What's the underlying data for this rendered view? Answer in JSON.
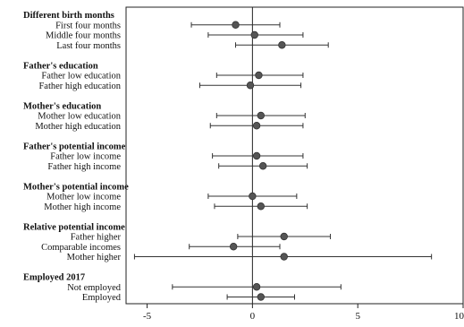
{
  "chart_data": {
    "type": "scatter",
    "title": "",
    "xlabel": "",
    "ylabel": "",
    "xlim": [
      -6,
      10
    ],
    "xticks": [
      -5,
      0,
      5,
      10
    ],
    "xtick_labels": [
      "-5",
      "0",
      "5",
      "10"
    ],
    "reference_line_x": 0,
    "grid": false,
    "legend": "none",
    "marker_color": "#555555",
    "line_color": "#333333",
    "groups": [
      {
        "label": "Different birth months",
        "items": [
          {
            "label": "First four months",
            "estimate": -0.8,
            "ci_low": -2.9,
            "ci_high": 1.3
          },
          {
            "label": "Middle four months",
            "estimate": 0.1,
            "ci_low": -2.1,
            "ci_high": 2.4
          },
          {
            "label": "Last four months",
            "estimate": 1.4,
            "ci_low": -0.8,
            "ci_high": 3.6
          }
        ]
      },
      {
        "label": "Father's education",
        "items": [
          {
            "label": "Father low education",
            "estimate": 0.3,
            "ci_low": -1.7,
            "ci_high": 2.4
          },
          {
            "label": "Father high education",
            "estimate": -0.1,
            "ci_low": -2.5,
            "ci_high": 2.3
          }
        ]
      },
      {
        "label": "Mother's education",
        "items": [
          {
            "label": "Mother low education",
            "estimate": 0.4,
            "ci_low": -1.7,
            "ci_high": 2.5
          },
          {
            "label": "Mother high education",
            "estimate": 0.2,
            "ci_low": -2.0,
            "ci_high": 2.4
          }
        ]
      },
      {
        "label": "Father's potential income",
        "items": [
          {
            "label": "Father low income",
            "estimate": 0.2,
            "ci_low": -1.9,
            "ci_high": 2.4
          },
          {
            "label": "Father high income",
            "estimate": 0.5,
            "ci_low": -1.6,
            "ci_high": 2.6
          }
        ]
      },
      {
        "label": "Mother's potential income",
        "items": [
          {
            "label": "Mother low income",
            "estimate": 0.0,
            "ci_low": -2.1,
            "ci_high": 2.1
          },
          {
            "label": "Mother high income",
            "estimate": 0.4,
            "ci_low": -1.8,
            "ci_high": 2.6
          }
        ]
      },
      {
        "label": "Relative potential income",
        "items": [
          {
            "label": "Father higher",
            "estimate": 1.5,
            "ci_low": -0.7,
            "ci_high": 3.7
          },
          {
            "label": "Comparable incomes",
            "estimate": -0.9,
            "ci_low": -3.0,
            "ci_high": 1.3
          },
          {
            "label": "Mother higher",
            "estimate": 1.5,
            "ci_low": -5.6,
            "ci_high": 8.5
          }
        ]
      },
      {
        "label": "Employed 2017",
        "items": [
          {
            "label": "Not employed",
            "estimate": 0.2,
            "ci_low": -3.8,
            "ci_high": 4.2
          },
          {
            "label": "Employed",
            "estimate": 0.4,
            "ci_low": -1.2,
            "ci_high": 2.0
          }
        ]
      }
    ]
  }
}
